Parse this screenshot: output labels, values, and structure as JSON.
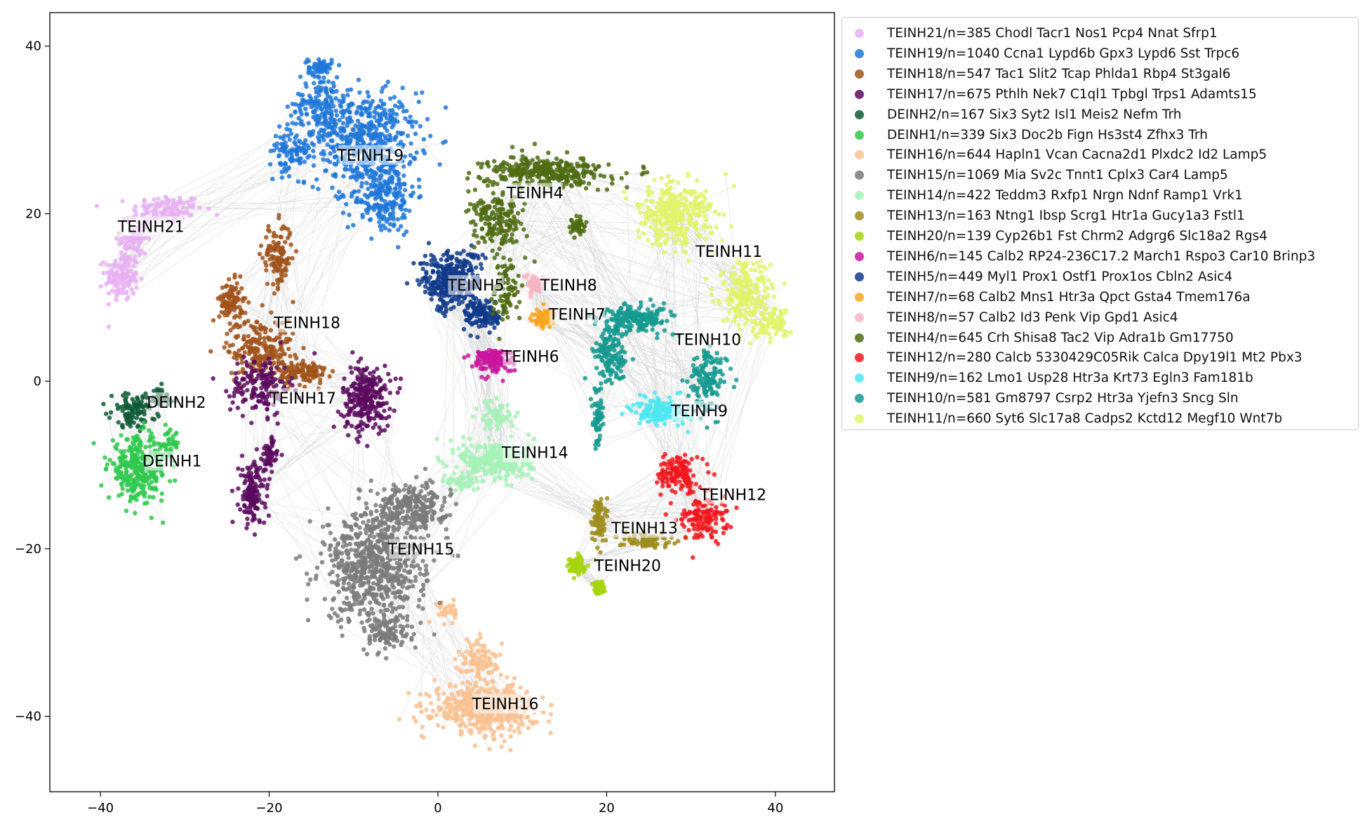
{
  "chart_data": {
    "type": "scatter",
    "xlim": [
      -46,
      47
    ],
    "ylim": [
      -49,
      44
    ],
    "xticks": [
      -40,
      -20,
      0,
      20,
      40
    ],
    "yticks": [
      -40,
      -20,
      0,
      20,
      40
    ],
    "xtick_labels": [
      "−40",
      "−20",
      "0",
      "20",
      "40"
    ],
    "ytick_labels": [
      "−40",
      "−20",
      "0",
      "20",
      "40"
    ],
    "grid": false,
    "legend_position": "outside-right-top",
    "edge_color": "#9a9a9a",
    "series": [
      {
        "name": "TEINH21/n=385 Chodl Tacr1 Nos1 Pcp4 Nnat Sfrp1",
        "color": "#e8b1f2",
        "label": "TEINH21",
        "center": [
          -34,
          18.5
        ],
        "blobs": [
          [
            -32,
            20.5,
            3.8,
            1.6,
            120
          ],
          [
            -37.5,
            12.5,
            1.8,
            2.6,
            140
          ],
          [
            -36,
            17,
            1.5,
            2.5,
            80
          ]
        ]
      },
      {
        "name": "TEINH19/n=1040 Ccna1 Lypd6b Gpx3 Lypd6 Sst Trpc6",
        "color": "#1f77d8",
        "label": "TEINH19",
        "center": [
          -8,
          27
        ],
        "blobs": [
          [
            -9,
            29,
            6,
            5,
            500
          ],
          [
            -6.5,
            22.5,
            3.5,
            4.5,
            250
          ],
          [
            -14,
            33,
            2.6,
            3,
            120
          ],
          [
            -14,
            37.5,
            1.3,
            1,
            60
          ],
          [
            -17.5,
            27.5,
            2.2,
            2.5,
            90
          ]
        ]
      },
      {
        "name": "TEINH18/n=547 Tac1 Slit2 Tcap Phlda1 Rbp4 St3gal6",
        "color": "#a0521a",
        "label": "TEINH18",
        "center": [
          -15.5,
          7
        ],
        "blobs": [
          [
            -19,
            15,
            1.6,
            3.5,
            120
          ],
          [
            -24.5,
            9.5,
            1.3,
            2.2,
            100
          ],
          [
            -21,
            4,
            3.6,
            3.2,
            220
          ],
          [
            -16,
            1,
            2.6,
            1.3,
            110
          ]
        ]
      },
      {
        "name": "TEINH17/n=675 Pthlh Nek7 C1ql1 Tpbgl Trps1 Adamts15",
        "color": "#5a0b5e",
        "label": "TEINH17",
        "center": [
          -16,
          -2
        ],
        "blobs": [
          [
            -8.5,
            -2,
            2.6,
            3.6,
            260
          ],
          [
            -21,
            -0.5,
            3.2,
            3.2,
            160
          ],
          [
            -22,
            -13.5,
            1.4,
            3.5,
            150
          ],
          [
            -20,
            -9,
            0.9,
            2,
            50
          ]
        ]
      },
      {
        "name": "DEINH2/n=167 Six3 Syt2 Isl1 Meis2 Nefm Trh",
        "color": "#0f5a36",
        "label": "DEINH2",
        "center": [
          -31,
          -2.5
        ],
        "blobs": [
          [
            -36,
            -3.5,
            2.4,
            1.8,
            110
          ],
          [
            -33,
            -2,
            1.5,
            1.2,
            50
          ]
        ]
      },
      {
        "name": "DEINH1/n=339 Six3 Doc2b Fign Hs3st4 Zfhx3 Trh",
        "color": "#2ec94c",
        "label": "DEINH1",
        "center": [
          -31.5,
          -9.5
        ],
        "blobs": [
          [
            -35.5,
            -10.5,
            3.2,
            3.4,
            300
          ],
          [
            -32,
            -7.5,
            1.2,
            1.5,
            40
          ]
        ]
      },
      {
        "name": "TEINH16/n=644 Hapln1 Vcan Cacna2d1 Plxdc2 Id2 Lamp5",
        "color": "#f9c190",
        "label": "TEINH16",
        "center": [
          8,
          -38.5
        ],
        "blobs": [
          [
            5.5,
            -39,
            5.5,
            2.6,
            500
          ],
          [
            5,
            -33.5,
            2.2,
            2.5,
            100
          ],
          [
            1,
            -27.5,
            1,
            1.5,
            30
          ]
        ]
      },
      {
        "name": "TEINH15/n=1069 Mia Sv2c Tnnt1 Cplx3 Car4 Lamp5",
        "color": "#7a7a7a",
        "label": "TEINH15",
        "center": [
          -2,
          -20
        ],
        "blobs": [
          [
            -7.5,
            -22,
            5.5,
            6,
            700
          ],
          [
            -3,
            -15,
            3.8,
            2.5,
            250
          ],
          [
            -6,
            -30,
            2.5,
            2,
            100
          ]
        ]
      },
      {
        "name": "TEINH14/n=422 Teddm3 Rxfp1 Nrgn Ndnf Ramp1 Vrk1",
        "color": "#a7f2b8",
        "label": "TEINH14",
        "center": [
          11.5,
          -8.5
        ],
        "blobs": [
          [
            7,
            -9.5,
            4,
            2.2,
            300
          ],
          [
            7,
            -4,
            1.8,
            1.6,
            70
          ],
          [
            3,
            -12,
            1.8,
            1,
            50
          ]
        ]
      },
      {
        "name": "TEINH13/n=163 Ntng1 Ibsp Scrg1 Htr1a Gucy1a3 Fstl1",
        "color": "#9e8d1c",
        "label": "TEINH13",
        "center": [
          24.5,
          -17.5
        ],
        "blobs": [
          [
            19,
            -16.5,
            0.7,
            2.5,
            80
          ],
          [
            24.5,
            -19,
            3,
            0.7,
            80
          ]
        ]
      },
      {
        "name": "TEINH20/n=139 Cyp26b1 Fst Chrm2 Adgrg6 Slc18a2 Rgs4",
        "color": "#a6d40f",
        "label": "TEINH20",
        "center": [
          22.5,
          -22
        ],
        "blobs": [
          [
            16.5,
            -22,
            0.9,
            0.9,
            90
          ],
          [
            19,
            -24.5,
            0.6,
            0.8,
            50
          ]
        ]
      },
      {
        "name": "TEINH6/n=145 Calb2 RP24-236C17.2 March1 Rspo3 Car10 Brinp3",
        "color": "#c8159c",
        "label": "TEINH6",
        "center": [
          11,
          3
        ],
        "blobs": [
          [
            6.5,
            2.5,
            2.2,
            1.3,
            145
          ]
        ]
      },
      {
        "name": "TEINH5/n=449 Myl1 Prox1 Ostf1 Prox1os Cbln2 Asic4",
        "color": "#0f3a8a",
        "label": "TEINH5",
        "center": [
          4.5,
          11.5
        ],
        "blobs": [
          [
            1.5,
            12,
            3.2,
            3.2,
            330
          ],
          [
            5.5,
            8,
            2,
            1.8,
            120
          ]
        ]
      },
      {
        "name": "TEINH7/n=68 Calb2 Mns1 Htr3a Qpct Gsta4 Tmem176a",
        "color": "#f8a51e",
        "label": "TEINH7",
        "center": [
          16.5,
          8
        ],
        "blobs": [
          [
            12.5,
            7.5,
            1.4,
            1.1,
            68
          ]
        ]
      },
      {
        "name": "TEINH8/n=57 Calb2 Id3 Penk Vip Gpd1 Asic4",
        "color": "#f7b4c3",
        "label": "TEINH8",
        "center": [
          15.5,
          11.5
        ],
        "blobs": [
          [
            11.5,
            11.5,
            1,
            1,
            57
          ]
        ]
      },
      {
        "name": "TEINH4/n=645 Crh Shisa8 Tac2 Vip Adra1b Gm17750",
        "color": "#4f6b12",
        "label": "TEINH4",
        "center": [
          11.5,
          22.5
        ],
        "blobs": [
          [
            13,
            25,
            6.5,
            1.6,
            330
          ],
          [
            7,
            19,
            3,
            3,
            180
          ],
          [
            8,
            11,
            1.5,
            3.5,
            90
          ],
          [
            16.5,
            18.5,
            0.8,
            1,
            45
          ]
        ]
      },
      {
        "name": "TEINH12/n=280 Calcb 5330429C05Rik Calca Dpy19l1 Mt2 Pbx3",
        "color": "#f2161d",
        "label": "TEINH12",
        "center": [
          35,
          -13.5
        ],
        "blobs": [
          [
            28.5,
            -11,
            2,
            1.8,
            130
          ],
          [
            31.5,
            -16,
            2.5,
            2.8,
            150
          ]
        ]
      },
      {
        "name": "TEINH9/n=162 Lmo1 Usp28 Htr3a Krt73 Egln3 Fam181b",
        "color": "#4de8f0",
        "label": "TEINH9",
        "center": [
          31,
          -3.5
        ],
        "blobs": [
          [
            26.5,
            -3.5,
            3,
            1.5,
            162
          ]
        ]
      },
      {
        "name": "TEINH10/n=581 Gm8797 Csrp2 Htr3a Yjefn3 Sncg Sln",
        "color": "#149a8f",
        "label": "TEINH10",
        "center": [
          32,
          5
        ],
        "blobs": [
          [
            23.5,
            7.5,
            3.8,
            1.5,
            200
          ],
          [
            20.5,
            3,
            1.8,
            3,
            150
          ],
          [
            32,
            0,
            2,
            3.5,
            140
          ],
          [
            19,
            -4,
            0.6,
            3,
            60
          ]
        ]
      },
      {
        "name": "TEINH11/n=660 Syt6 Slc17a8 Cadps2 Kctd12 Megf10 Wnt7b",
        "color": "#dff56a",
        "label": "TEINH11",
        "center": [
          34.5,
          15.5
        ],
        "blobs": [
          [
            28,
            20,
            4,
            3.5,
            330
          ],
          [
            36.5,
            10,
            2.7,
            4,
            220
          ],
          [
            40,
            7,
            2,
            1.5,
            80
          ]
        ]
      }
    ]
  }
}
